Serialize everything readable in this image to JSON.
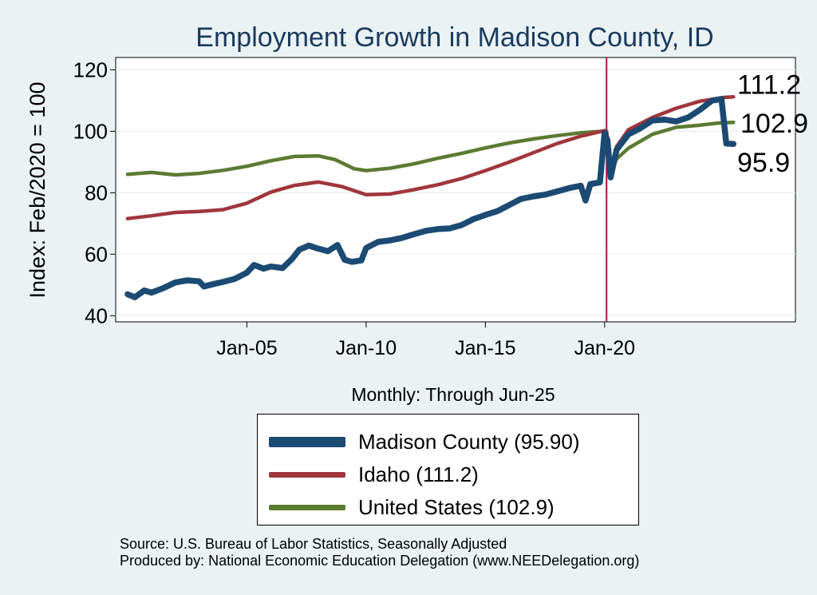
{
  "chart_data": {
    "type": "line",
    "title": "Employment Growth in Madison  County, ID",
    "ylabel": "Index: Feb/2020 = 100",
    "xlabel": "Monthly: Through Jun-25",
    "ylim": [
      38,
      124
    ],
    "xlim": [
      1999.5,
      2028.0
    ],
    "y_ticks": [
      40,
      60,
      80,
      100,
      120
    ],
    "x_ticks": [
      {
        "value": 2005.0,
        "label": "Jan-05"
      },
      {
        "value": 2010.0,
        "label": "Jan-10"
      },
      {
        "value": 2015.0,
        "label": "Jan-15"
      },
      {
        "value": 2020.0,
        "label": "Jan-20"
      }
    ],
    "reference_line_x": 2020.08,
    "grid": true,
    "series": [
      {
        "name": "United States",
        "legend_label": "United States (102.9)",
        "color": "#5a7b32",
        "end_label": "102.9",
        "points": [
          [
            2000.0,
            86.0
          ],
          [
            2001.0,
            86.6
          ],
          [
            2002.0,
            85.8
          ],
          [
            2003.0,
            86.3
          ],
          [
            2004.0,
            87.3
          ],
          [
            2005.0,
            88.6
          ],
          [
            2006.0,
            90.4
          ],
          [
            2007.0,
            91.8
          ],
          [
            2008.0,
            92.0
          ],
          [
            2008.7,
            90.8
          ],
          [
            2009.5,
            87.8
          ],
          [
            2010.0,
            87.2
          ],
          [
            2011.0,
            88.0
          ],
          [
            2012.0,
            89.4
          ],
          [
            2013.0,
            91.2
          ],
          [
            2014.0,
            92.8
          ],
          [
            2015.0,
            94.6
          ],
          [
            2016.0,
            96.2
          ],
          [
            2017.0,
            97.5
          ],
          [
            2018.0,
            98.6
          ],
          [
            2019.0,
            99.5
          ],
          [
            2019.9,
            100.0
          ],
          [
            2020.08,
            100.0
          ],
          [
            2020.25,
            86.5
          ],
          [
            2020.5,
            91.0
          ],
          [
            2021.0,
            94.5
          ],
          [
            2022.0,
            99.0
          ],
          [
            2023.0,
            101.3
          ],
          [
            2024.0,
            102.0
          ],
          [
            2024.8,
            102.7
          ],
          [
            2025.4,
            102.9
          ]
        ]
      },
      {
        "name": "Idaho",
        "legend_label": "Idaho (111.2)",
        "color": "#a0363c",
        "end_label": "111.2",
        "points": [
          [
            2000.0,
            71.6
          ],
          [
            2001.0,
            72.5
          ],
          [
            2002.0,
            73.6
          ],
          [
            2003.0,
            73.9
          ],
          [
            2004.0,
            74.5
          ],
          [
            2005.0,
            76.6
          ],
          [
            2006.0,
            80.2
          ],
          [
            2007.0,
            82.4
          ],
          [
            2008.0,
            83.5
          ],
          [
            2009.0,
            82.0
          ],
          [
            2010.0,
            79.4
          ],
          [
            2011.0,
            79.6
          ],
          [
            2012.0,
            81.0
          ],
          [
            2013.0,
            82.6
          ],
          [
            2014.0,
            84.6
          ],
          [
            2015.0,
            87.2
          ],
          [
            2016.0,
            90.0
          ],
          [
            2017.0,
            93.0
          ],
          [
            2018.0,
            96.0
          ],
          [
            2019.0,
            98.4
          ],
          [
            2020.0,
            100.2
          ],
          [
            2020.08,
            100.0
          ],
          [
            2020.25,
            88.0
          ],
          [
            2020.5,
            95.0
          ],
          [
            2021.0,
            100.5
          ],
          [
            2022.0,
            104.5
          ],
          [
            2023.0,
            107.5
          ],
          [
            2024.0,
            109.8
          ],
          [
            2025.0,
            111.0
          ],
          [
            2025.4,
            111.2
          ]
        ]
      },
      {
        "name": "Madison  County",
        "legend_label": "Madison  County (95.90)",
        "color": "#1b4a73",
        "end_label": "95.9",
        "points": [
          [
            2000.0,
            47.0
          ],
          [
            2000.3,
            46.0
          ],
          [
            2000.7,
            48.2
          ],
          [
            2001.0,
            47.5
          ],
          [
            2001.5,
            49.0
          ],
          [
            2002.0,
            50.8
          ],
          [
            2002.5,
            51.5
          ],
          [
            2003.0,
            51.2
          ],
          [
            2003.2,
            49.5
          ],
          [
            2003.6,
            50.3
          ],
          [
            2004.0,
            51.0
          ],
          [
            2004.5,
            52.0
          ],
          [
            2005.0,
            54.0
          ],
          [
            2005.3,
            56.5
          ],
          [
            2005.7,
            55.3
          ],
          [
            2006.0,
            56.0
          ],
          [
            2006.5,
            55.5
          ],
          [
            2006.9,
            58.5
          ],
          [
            2007.2,
            61.5
          ],
          [
            2007.6,
            62.8
          ],
          [
            2008.0,
            61.8
          ],
          [
            2008.4,
            61.0
          ],
          [
            2008.8,
            63.0
          ],
          [
            2009.1,
            58.2
          ],
          [
            2009.4,
            57.5
          ],
          [
            2009.8,
            58.0
          ],
          [
            2010.0,
            62.0
          ],
          [
            2010.5,
            64.0
          ],
          [
            2011.0,
            64.5
          ],
          [
            2011.5,
            65.3
          ],
          [
            2012.0,
            66.5
          ],
          [
            2012.5,
            67.6
          ],
          [
            2013.0,
            68.2
          ],
          [
            2013.5,
            68.4
          ],
          [
            2014.0,
            69.5
          ],
          [
            2014.5,
            71.4
          ],
          [
            2015.0,
            72.8
          ],
          [
            2015.5,
            74.0
          ],
          [
            2016.0,
            76.0
          ],
          [
            2016.5,
            78.0
          ],
          [
            2017.0,
            78.8
          ],
          [
            2017.5,
            79.4
          ],
          [
            2018.0,
            80.4
          ],
          [
            2018.5,
            81.5
          ],
          [
            2019.0,
            82.3
          ],
          [
            2019.2,
            77.5
          ],
          [
            2019.4,
            82.8
          ],
          [
            2019.8,
            83.4
          ],
          [
            2020.0,
            99.5
          ],
          [
            2020.12,
            97.0
          ],
          [
            2020.25,
            85.0
          ],
          [
            2020.5,
            94.0
          ],
          [
            2021.0,
            99.0
          ],
          [
            2021.5,
            101.0
          ],
          [
            2022.0,
            103.5
          ],
          [
            2022.5,
            103.8
          ],
          [
            2023.0,
            103.2
          ],
          [
            2023.5,
            104.5
          ],
          [
            2024.0,
            107.0
          ],
          [
            2024.5,
            110.0
          ],
          [
            2024.9,
            110.5
          ],
          [
            2025.1,
            96.0
          ],
          [
            2025.4,
            95.9
          ]
        ]
      }
    ]
  },
  "footer": {
    "source": "Source: U.S. Bureau of Labor Statistics, Seasonally Adjusted",
    "producer": "Produced by: National Economic Education Delegation (www.NEEDelegation.org)"
  }
}
